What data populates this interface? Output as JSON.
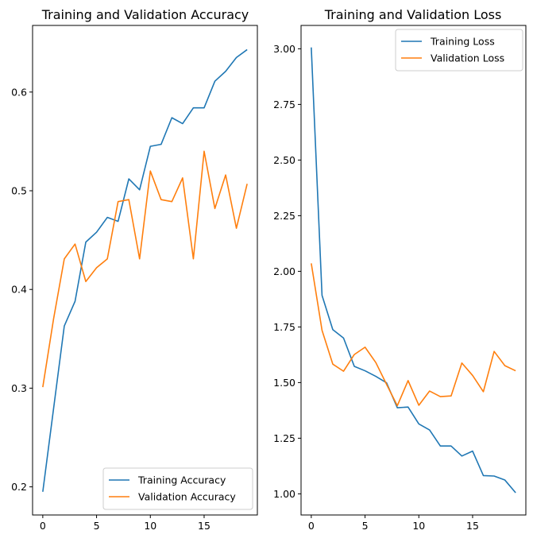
{
  "colors": {
    "training": "#1f77b4",
    "validation": "#ff7f0e"
  },
  "chart_data": [
    {
      "type": "line",
      "title": "Training and Validation Accuracy",
      "xlabel": "",
      "ylabel": "",
      "xlim": [
        -0.95,
        19.95
      ],
      "ylim": [
        0.1715,
        0.6675
      ],
      "xticks": [
        0,
        5,
        10,
        15
      ],
      "yticks": [
        0.2,
        0.3,
        0.4,
        0.5,
        0.6
      ],
      "grid": false,
      "legend": "lower right",
      "x": [
        0,
        1,
        2,
        3,
        4,
        5,
        6,
        7,
        8,
        9,
        10,
        11,
        12,
        13,
        14,
        15,
        16,
        17,
        18,
        19
      ],
      "series": [
        {
          "name": "Training Accuracy",
          "color": "#1f77b4",
          "values": [
            0.195,
            0.279,
            0.363,
            0.388,
            0.448,
            0.458,
            0.473,
            0.469,
            0.512,
            0.501,
            0.545,
            0.547,
            0.574,
            0.568,
            0.584,
            0.584,
            0.611,
            0.621,
            0.635,
            0.643
          ]
        },
        {
          "name": "Validation Accuracy",
          "color": "#ff7f0e",
          "values": [
            0.301,
            0.37,
            0.431,
            0.446,
            0.408,
            0.422,
            0.431,
            0.489,
            0.491,
            0.431,
            0.52,
            0.491,
            0.489,
            0.513,
            0.431,
            0.54,
            0.482,
            0.516,
            0.462,
            0.507
          ]
        }
      ]
    },
    {
      "type": "line",
      "title": "Training and Validation Loss",
      "xlabel": "",
      "ylabel": "",
      "xlim": [
        -0.95,
        19.95
      ],
      "ylim": [
        0.905,
        3.105
      ],
      "xticks": [
        0,
        5,
        10,
        15
      ],
      "yticks": [
        1.0,
        1.25,
        1.5,
        1.75,
        2.0,
        2.25,
        2.5,
        2.75,
        3.0
      ],
      "grid": false,
      "legend": "upper right",
      "x": [
        0,
        1,
        2,
        3,
        4,
        5,
        6,
        7,
        8,
        9,
        10,
        11,
        12,
        13,
        14,
        15,
        16,
        17,
        18,
        19
      ],
      "series": [
        {
          "name": "Training Loss",
          "color": "#1f77b4",
          "values": [
            3.006,
            1.892,
            1.738,
            1.7,
            1.573,
            1.553,
            1.528,
            1.499,
            1.387,
            1.39,
            1.314,
            1.287,
            1.215,
            1.215,
            1.17,
            1.192,
            1.082,
            1.08,
            1.062,
            1.005
          ]
        },
        {
          "name": "Validation Loss",
          "color": "#ff7f0e",
          "values": [
            2.036,
            1.735,
            1.583,
            1.551,
            1.626,
            1.659,
            1.59,
            1.492,
            1.396,
            1.509,
            1.398,
            1.462,
            1.437,
            1.44,
            1.588,
            1.532,
            1.459,
            1.64,
            1.576,
            1.553
          ]
        }
      ]
    }
  ]
}
